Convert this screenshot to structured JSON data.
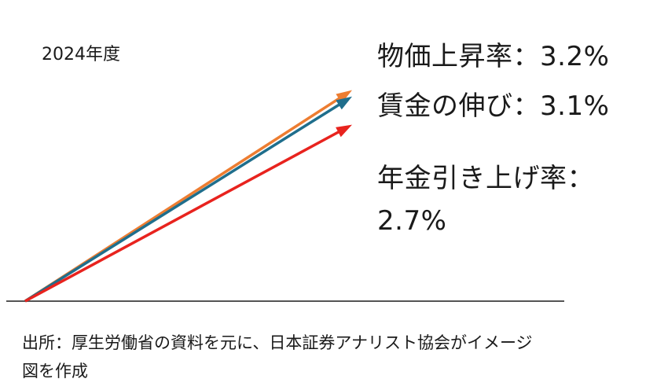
{
  "year_label": "2024年度",
  "labels": {
    "price": "物価上昇率：3.2%",
    "wage": "賃金の伸び：3.1%",
    "pension_line1": "年金引き上げ率：",
    "pension_line2": "2.7%"
  },
  "source": {
    "line1": "出所：厚生労働省の資料を元に、日本証券アナリスト協会がイメージ",
    "line2": "図を作成"
  },
  "series": [
    {
      "key": "price",
      "value": 3.2,
      "color": "#ED7D31"
    },
    {
      "key": "wage",
      "value": 3.1,
      "color": "#1F6E8C"
    },
    {
      "key": "pension",
      "value": 2.7,
      "color": "#E8231E"
    }
  ],
  "colors": {
    "baseline": "#555555",
    "text": "#1a1a1a"
  }
}
